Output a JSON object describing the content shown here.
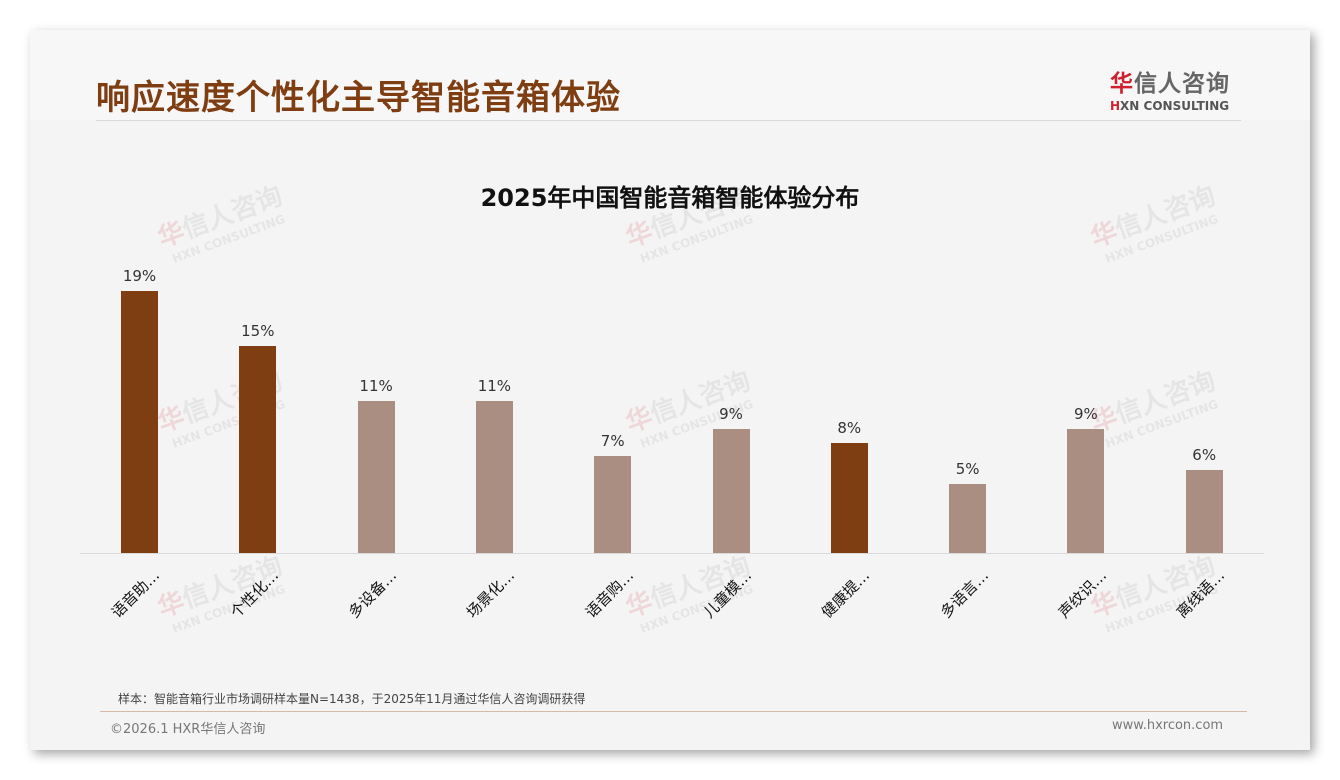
{
  "slide": {
    "title": "响应速度个性化主导智能音箱体验",
    "logo": {
      "cn_first": "华",
      "cn_rest": "信人咨询",
      "en_mark": "H",
      "en_rest": "XN CONSULTING"
    },
    "watermark": {
      "cn_first": "华",
      "cn_rest": "信人咨询",
      "en": "HXN CONSULTING"
    },
    "note": "样本：智能音箱行业市场调研样本量N=1438，于2025年11月通过华信人咨询调研获得",
    "copyright": "©2026.1 HXR华信人咨询",
    "website": "www.hxrcon.com"
  },
  "colors": {
    "highlight": "#7f3d12",
    "normal": "#ab8e82",
    "title": "#7f3d12",
    "logo_red": "#d0202e"
  },
  "chart_data": {
    "type": "bar",
    "title": "2025年中国智能音箱智能体验分布",
    "categories": [
      "语音助…",
      "个性化…",
      "多设备…",
      "场景化…",
      "语音购…",
      "儿童模…",
      "健康提…",
      "多语言…",
      "声纹识…",
      "离线语…"
    ],
    "values": [
      19,
      15,
      11,
      11,
      7,
      9,
      8,
      5,
      9,
      6
    ],
    "value_labels": [
      "19%",
      "15%",
      "11%",
      "11%",
      "7%",
      "9%",
      "8%",
      "5%",
      "9%",
      "6%"
    ],
    "highlighted": [
      true,
      true,
      false,
      false,
      false,
      false,
      true,
      false,
      false,
      false
    ],
    "xlabel": "",
    "ylabel": "",
    "ylim": [
      0,
      20
    ],
    "grid": false,
    "legend": "none"
  }
}
